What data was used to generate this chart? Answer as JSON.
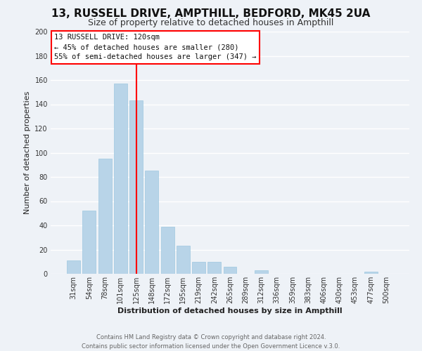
{
  "title": "13, RUSSELL DRIVE, AMPTHILL, BEDFORD, MK45 2UA",
  "subtitle": "Size of property relative to detached houses in Ampthill",
  "xlabel": "Distribution of detached houses by size in Ampthill",
  "ylabel": "Number of detached properties",
  "footer_line1": "Contains HM Land Registry data © Crown copyright and database right 2024.",
  "footer_line2": "Contains public sector information licensed under the Open Government Licence v.3.0.",
  "bar_labels": [
    "31sqm",
    "54sqm",
    "78sqm",
    "101sqm",
    "125sqm",
    "148sqm",
    "172sqm",
    "195sqm",
    "219sqm",
    "242sqm",
    "265sqm",
    "289sqm",
    "312sqm",
    "336sqm",
    "359sqm",
    "383sqm",
    "406sqm",
    "430sqm",
    "453sqm",
    "477sqm",
    "500sqm"
  ],
  "bar_values": [
    11,
    52,
    95,
    157,
    143,
    85,
    39,
    23,
    10,
    10,
    6,
    0,
    3,
    0,
    0,
    0,
    0,
    0,
    0,
    2,
    0
  ],
  "bar_color": "#b8d4e8",
  "bar_edge_color": "#9ec8e0",
  "vline_color": "red",
  "vline_x_index": 4,
  "annotation_title": "13 RUSSELL DRIVE: 120sqm",
  "annotation_line1": "← 45% of detached houses are smaller (280)",
  "annotation_line2": "55% of semi-detached houses are larger (347) →",
  "annotation_box_color": "white",
  "annotation_box_edge_color": "red",
  "ylim": [
    0,
    200
  ],
  "yticks": [
    0,
    20,
    40,
    60,
    80,
    100,
    120,
    140,
    160,
    180,
    200
  ],
  "background_color": "#eef2f7",
  "grid_color": "white",
  "title_fontsize": 11,
  "subtitle_fontsize": 9,
  "ylabel_fontsize": 8,
  "xlabel_fontsize": 8,
  "tick_fontsize": 7,
  "annotation_fontsize": 7.5,
  "footer_fontsize": 6
}
